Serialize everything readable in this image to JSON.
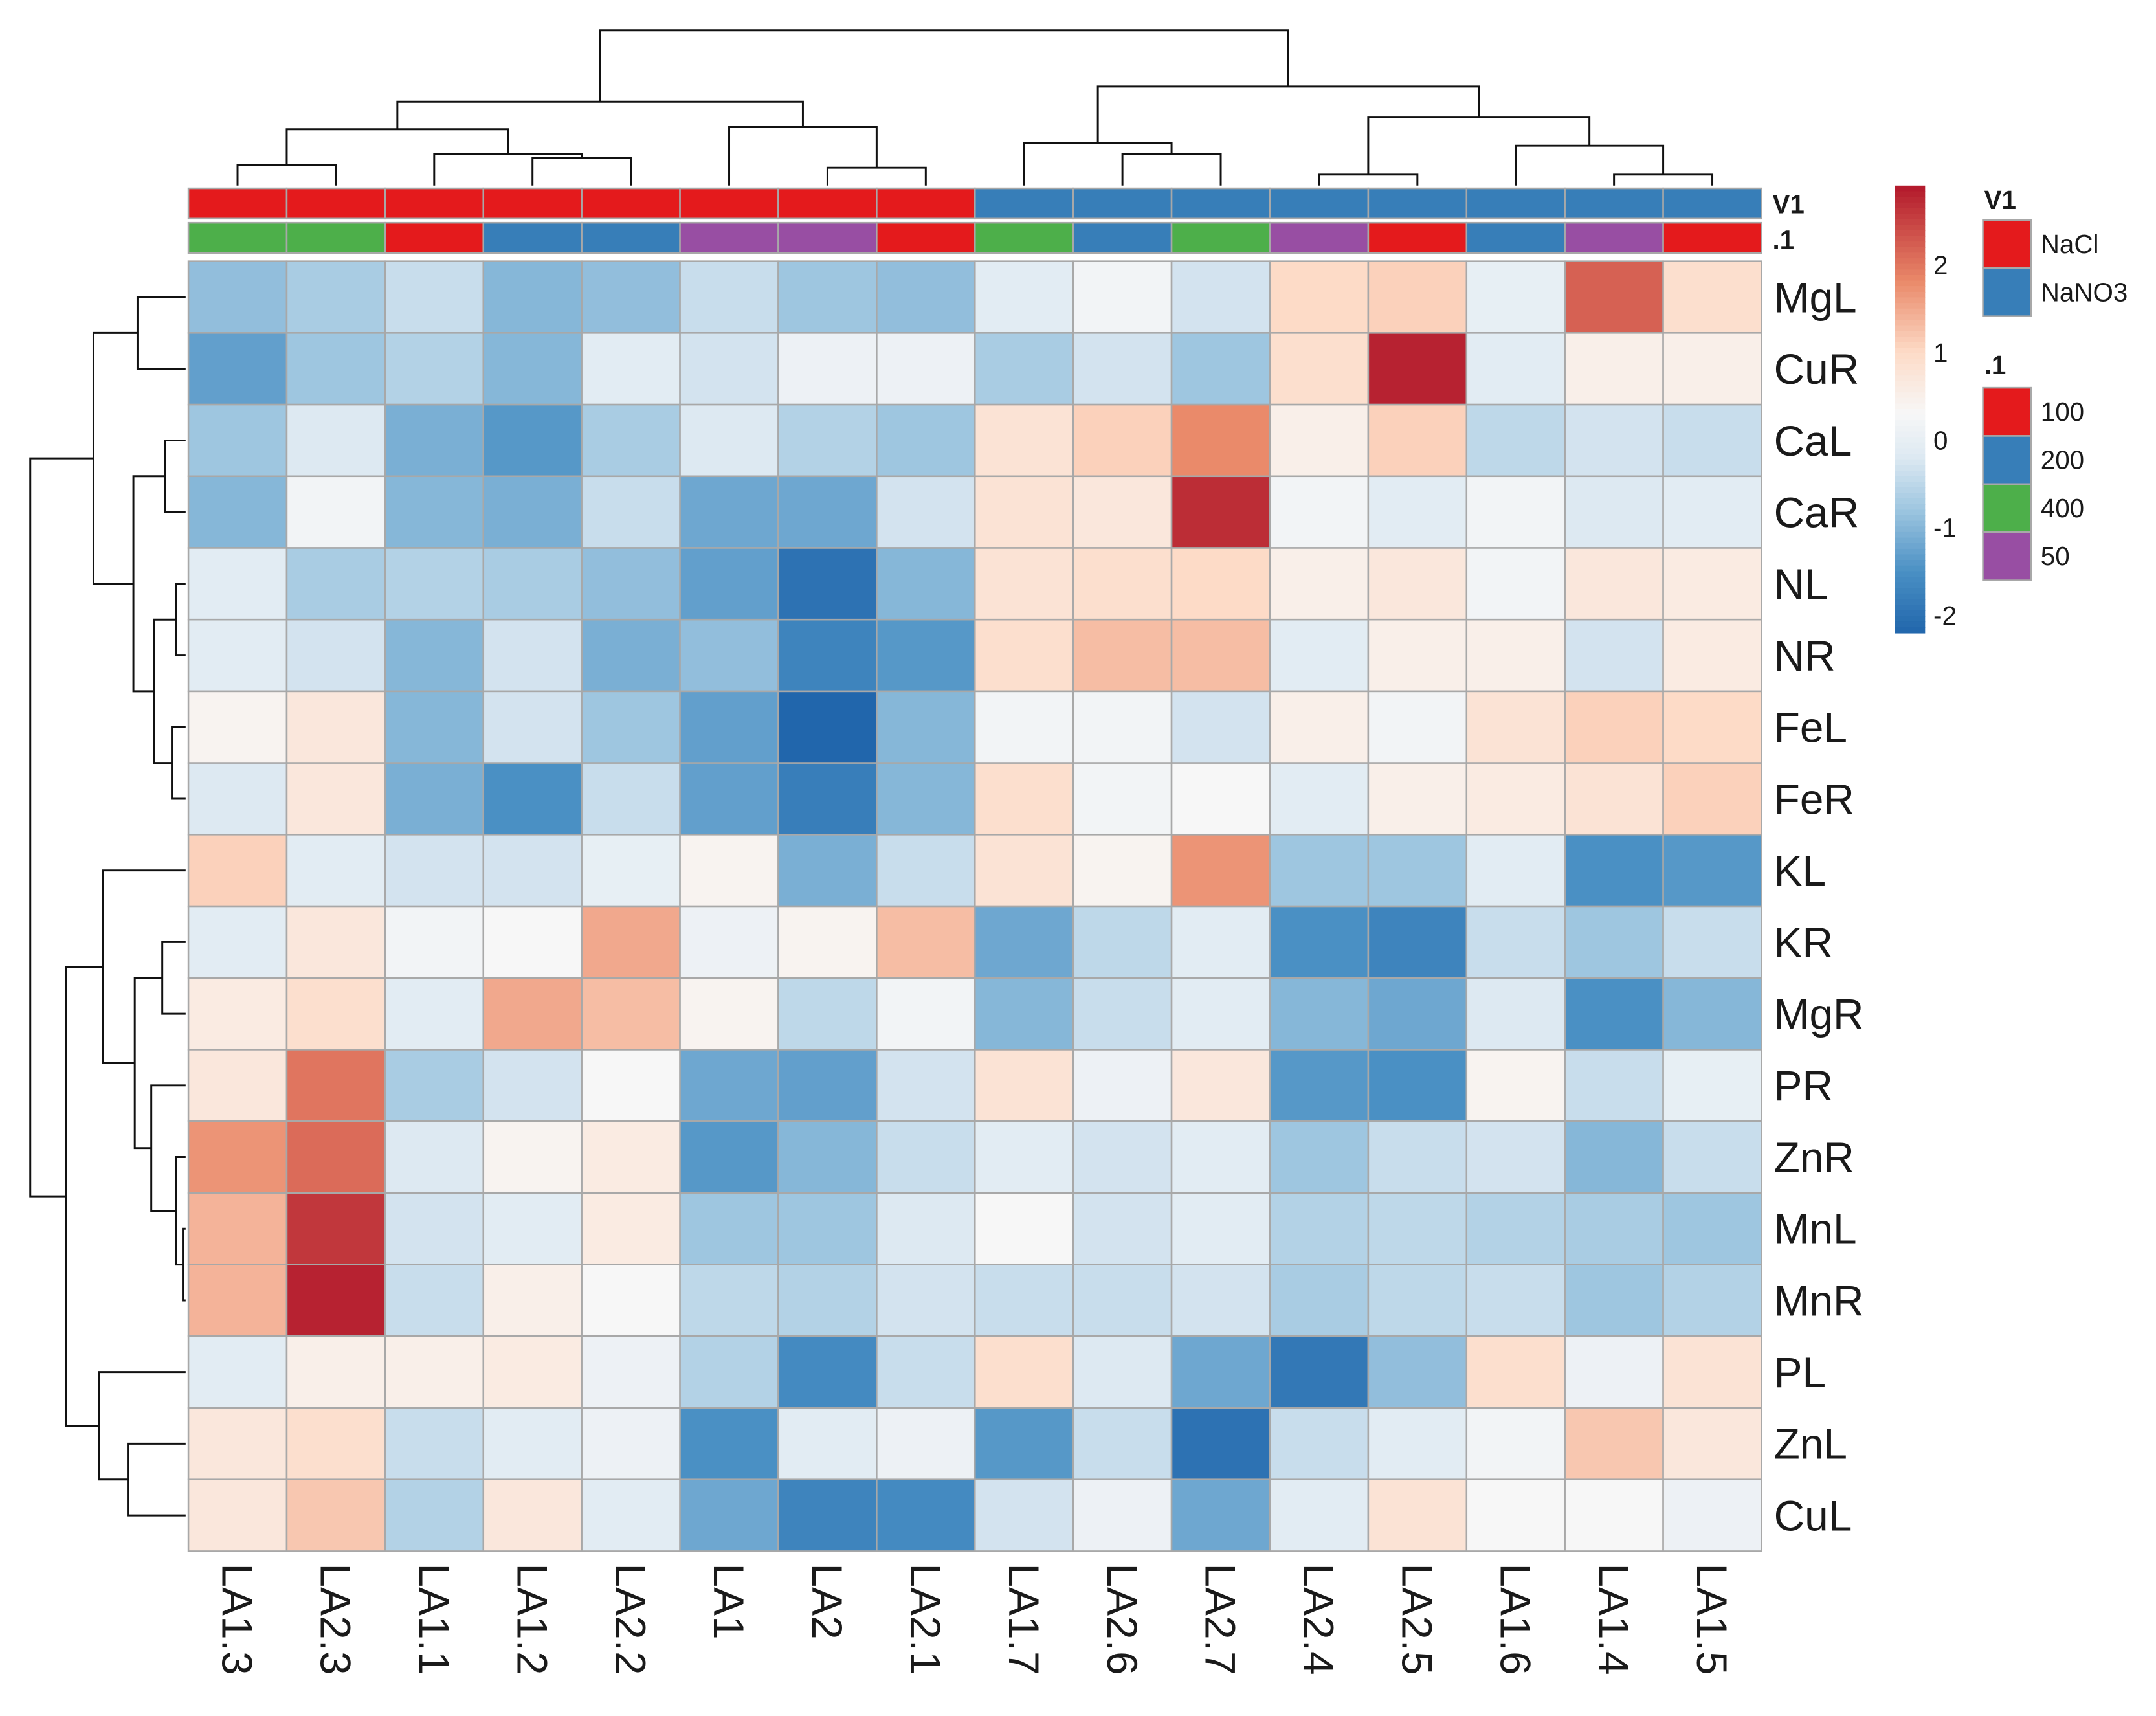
{
  "chart_data": {
    "type": "heatmap",
    "title": "",
    "columns": [
      "LA1.3",
      "LA2.3",
      "LA1.1",
      "LA1.2",
      "LA2.2",
      "LA1",
      "LA2",
      "LA2.1",
      "LA1.7",
      "LA2.6",
      "LA2.7",
      "LA2.4",
      "LA2.5",
      "LA1.6",
      "LA1.4",
      "LA1.5"
    ],
    "rows": [
      "MgL",
      "CuR",
      "CaL",
      "CaR",
      "NL",
      "NR",
      "FeL",
      "FeR",
      "KL",
      "KR",
      "MgR",
      "PR",
      "ZnR",
      "MnL",
      "MnR",
      "PL",
      "ZnL",
      "CuL"
    ],
    "values": [
      [
        -0.9,
        -0.7,
        -0.4,
        -1.0,
        -0.9,
        -0.4,
        -0.8,
        -0.9,
        -0.1,
        0.2,
        -0.3,
        1.0,
        1.1,
        0.0,
        2.2,
        0.9
      ],
      [
        -1.3,
        -0.8,
        -0.6,
        -1.0,
        -0.1,
        -0.3,
        0.1,
        0.1,
        -0.7,
        -0.3,
        -0.8,
        0.9,
        2.8,
        -0.1,
        0.5,
        0.5
      ],
      [
        -0.8,
        -0.2,
        -1.1,
        -1.4,
        -0.7,
        -0.2,
        -0.6,
        -0.8,
        0.8,
        1.1,
        1.8,
        0.5,
        1.1,
        -0.5,
        -0.3,
        -0.4
      ],
      [
        -1.0,
        0.2,
        -1.0,
        -1.1,
        -0.4,
        -1.2,
        -1.2,
        -0.3,
        0.8,
        0.7,
        2.7,
        0.2,
        -0.1,
        0.2,
        -0.2,
        -0.1
      ],
      [
        -0.1,
        -0.7,
        -0.6,
        -0.7,
        -0.9,
        -1.3,
        -2.0,
        -1.0,
        0.8,
        0.9,
        1.0,
        0.5,
        0.7,
        0.2,
        0.7,
        0.6
      ],
      [
        -0.1,
        -0.3,
        -1.0,
        -0.3,
        -1.1,
        -0.9,
        -1.7,
        -1.4,
        0.9,
        1.3,
        1.3,
        -0.1,
        0.5,
        0.5,
        -0.3,
        0.6
      ],
      [
        0.4,
        0.7,
        -1.0,
        -0.3,
        -0.8,
        -1.3,
        -2.2,
        -1.0,
        0.2,
        0.2,
        -0.3,
        0.5,
        0.2,
        0.8,
        1.1,
        1.0
      ],
      [
        -0.2,
        0.7,
        -1.1,
        -1.5,
        -0.4,
        -1.3,
        -1.8,
        -1.0,
        0.9,
        0.2,
        0.3,
        -0.1,
        0.5,
        0.6,
        0.8,
        1.1
      ],
      [
        1.1,
        -0.1,
        -0.3,
        -0.3,
        0.0,
        0.4,
        -1.1,
        -0.4,
        0.8,
        0.4,
        1.7,
        -0.8,
        -0.8,
        -0.1,
        -1.5,
        -1.4
      ],
      [
        -0.1,
        0.7,
        0.2,
        0.3,
        1.5,
        0.1,
        0.4,
        1.3,
        -1.2,
        -0.5,
        -0.1,
        -1.5,
        -1.7,
        -0.4,
        -0.8,
        -0.4
      ],
      [
        0.6,
        0.9,
        -0.1,
        1.5,
        1.3,
        0.4,
        -0.5,
        0.2,
        -1.0,
        -0.4,
        -0.1,
        -1.0,
        -1.2,
        -0.2,
        -1.5,
        -1.0
      ],
      [
        0.7,
        2.0,
        -0.7,
        -0.3,
        0.3,
        -1.2,
        -1.3,
        -0.3,
        0.8,
        0.1,
        0.7,
        -1.4,
        -1.5,
        0.4,
        -0.4,
        0.0
      ],
      [
        1.7,
        2.1,
        -0.2,
        0.4,
        0.6,
        -1.4,
        -1.0,
        -0.4,
        -0.1,
        -0.3,
        -0.1,
        -0.8,
        -0.4,
        -0.3,
        -1.0,
        -0.4
      ],
      [
        1.4,
        2.6,
        -0.3,
        -0.1,
        0.6,
        -0.8,
        -0.8,
        -0.2,
        0.3,
        -0.3,
        -0.1,
        -0.6,
        -0.5,
        -0.6,
        -0.7,
        -0.8
      ],
      [
        1.4,
        2.8,
        -0.4,
        0.5,
        0.3,
        -0.5,
        -0.6,
        -0.3,
        -0.4,
        -0.4,
        -0.3,
        -0.7,
        -0.5,
        -0.4,
        -0.8,
        -0.6
      ],
      [
        -0.1,
        0.5,
        0.5,
        0.6,
        0.1,
        -0.6,
        -1.6,
        -0.4,
        0.9,
        -0.2,
        -1.2,
        -1.9,
        -0.9,
        0.9,
        0.1,
        0.8
      ],
      [
        0.7,
        0.9,
        -0.4,
        -0.1,
        0.1,
        -1.5,
        -0.1,
        0.1,
        -1.4,
        -0.4,
        -2.0,
        -0.4,
        -0.1,
        0.2,
        1.2,
        0.7
      ],
      [
        0.7,
        1.2,
        -0.6,
        0.7,
        -0.1,
        -1.2,
        -1.7,
        -1.6,
        -0.3,
        0.1,
        -1.2,
        -0.1,
        0.8,
        0.3,
        0.3,
        0.1
      ]
    ],
    "color_range": [
      -2.2,
      2.9
    ],
    "colorbar_ticks": [
      "2",
      "1",
      "0",
      "-1",
      "-2"
    ],
    "colorbar_tick_values": [
      2,
      1,
      0,
      -1,
      -2
    ],
    "annotations": {
      "V1": {
        "title": "V1",
        "values": [
          "NaCl",
          "NaCl",
          "NaCl",
          "NaCl",
          "NaCl",
          "NaCl",
          "NaCl",
          "NaCl",
          "NaNO3",
          "NaNO3",
          "NaNO3",
          "NaNO3",
          "NaNO3",
          "NaNO3",
          "NaNO3",
          "NaNO3"
        ],
        "legend": [
          {
            "label": "NaCl",
            "color": "#e41a1c"
          },
          {
            "label": "NaNO3",
            "color": "#377eb8"
          }
        ]
      },
      "dot1": {
        "title": ".1",
        "values": [
          "400",
          "400",
          "100",
          "200",
          "200",
          "50",
          "50",
          "100",
          "400",
          "200",
          "400",
          "50",
          "100",
          "200",
          "50",
          "100"
        ],
        "legend": [
          {
            "label": "100",
            "color": "#e41a1c"
          },
          {
            "label": "200",
            "color": "#377eb8"
          },
          {
            "label": "400",
            "color": "#4daf4a"
          },
          {
            "label": "50",
            "color": "#984ea3"
          }
        ]
      }
    },
    "annotation_row_labels": [
      "V1",
      ".1"
    ]
  }
}
